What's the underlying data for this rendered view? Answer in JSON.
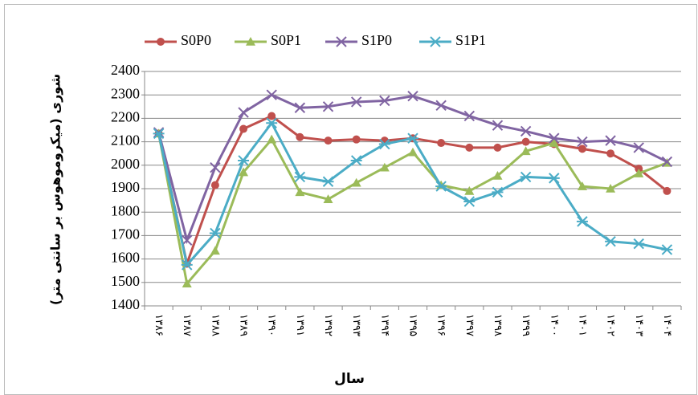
{
  "chart_data": {
    "type": "line",
    "y_label": "شوری (میکروموهوس بر سانتی متر)",
    "x_label": "سال",
    "categories": [
      "۱۳۸۶",
      "۱۳۸۷",
      "۱۳۸۸",
      "۱۳۸۹",
      "۱۳۹۰",
      "۱۳۹۱",
      "۱۳۹۲",
      "۱۳۹۳",
      "۱۳۹۴",
      "۱۳۹۵",
      "۱۳۹۶",
      "۱۳۹۷",
      "۱۳۹۸",
      "۱۳۹۹",
      "۱۴۰۰",
      "۱۴۰۱",
      "۱۴۰۲",
      "۱۴۰۳",
      "۱۴۰۴"
    ],
    "series": [
      {
        "name": "S0P0",
        "color": "#c0504d",
        "marker": "circle",
        "values": [
          2135,
          1580,
          1915,
          2155,
          2210,
          2120,
          2105,
          2110,
          2105,
          2115,
          2095,
          2075,
          2075,
          2100,
          2090,
          2070,
          2050,
          1985,
          1890
        ]
      },
      {
        "name": "S0P1",
        "color": "#9bbb59",
        "marker": "triangle",
        "values": [
          2135,
          1495,
          1635,
          1970,
          2110,
          1885,
          1855,
          1925,
          1990,
          2055,
          1915,
          1890,
          1955,
          2060,
          2095,
          1910,
          1900,
          1965,
          2010
        ]
      },
      {
        "name": "S1P0",
        "color": "#8064a2",
        "marker": "x",
        "values": [
          2140,
          1680,
          1990,
          2225,
          2300,
          2245,
          2250,
          2270,
          2275,
          2295,
          2255,
          2210,
          2170,
          2145,
          2115,
          2100,
          2105,
          2075,
          2015
        ]
      },
      {
        "name": "S1P1",
        "color": "#4bacc6",
        "marker": "star",
        "values": [
          2135,
          1575,
          1710,
          2020,
          2180,
          1950,
          1930,
          2020,
          2090,
          2115,
          1910,
          1845,
          1885,
          1950,
          1945,
          1760,
          1675,
          1665,
          1640
        ]
      }
    ],
    "ylim": [
      1400,
      2400
    ],
    "yticks": [
      1400,
      1500,
      1600,
      1700,
      1800,
      1900,
      2000,
      2100,
      2200,
      2300,
      2400
    ],
    "grid": true,
    "legend": "top"
  }
}
